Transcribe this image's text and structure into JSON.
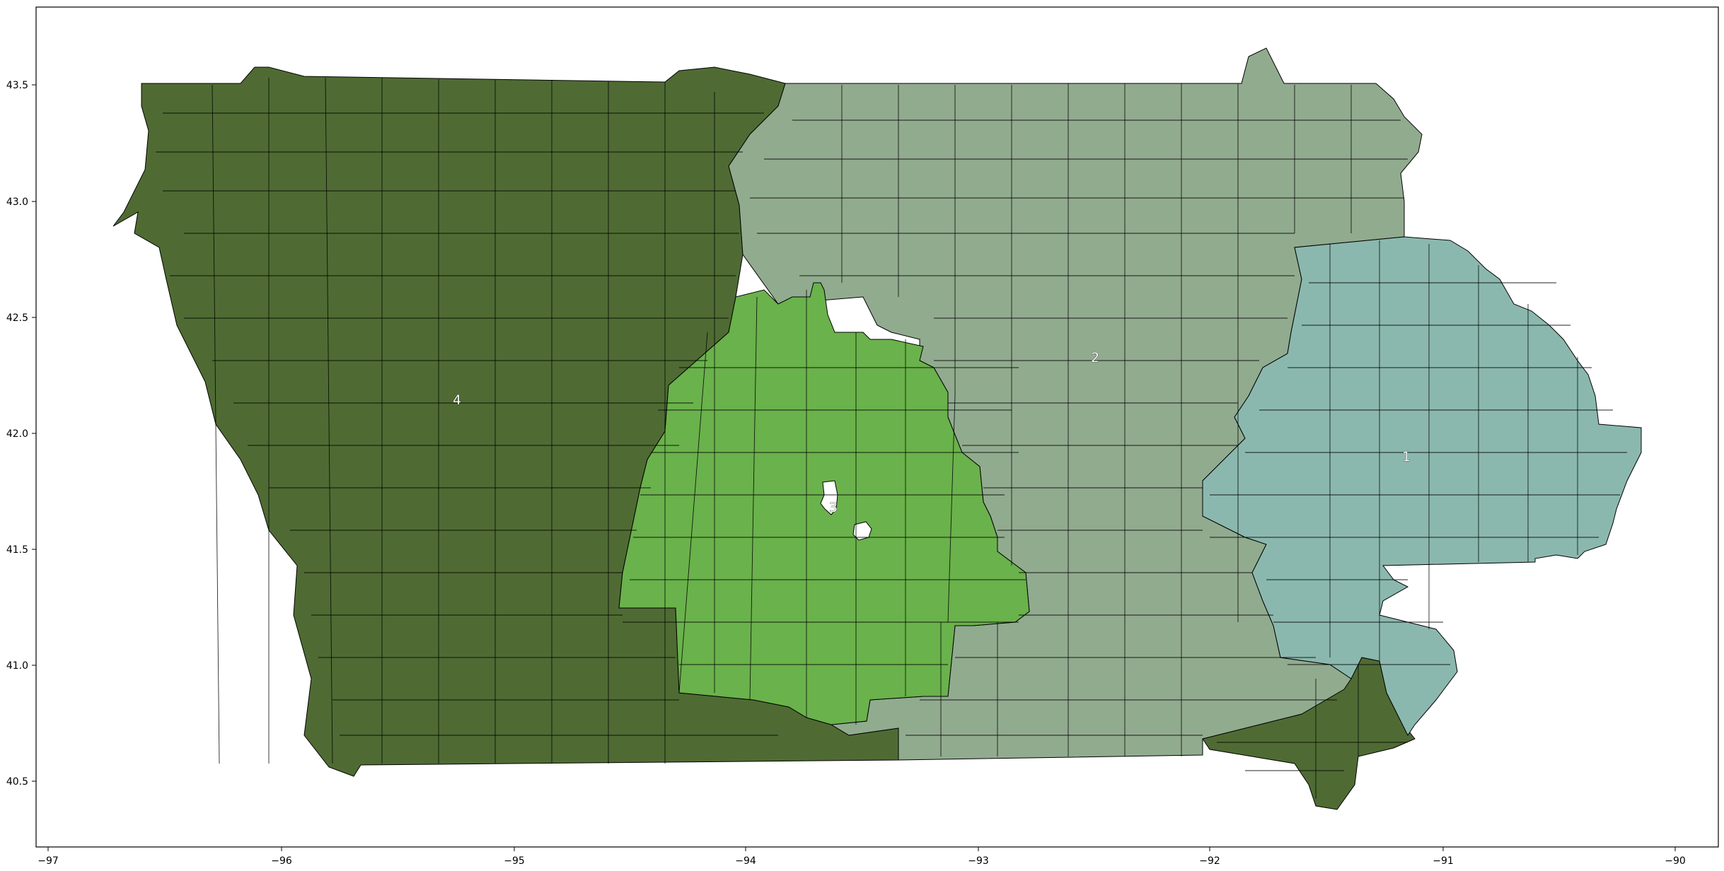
{
  "map": {
    "type": "choropleth",
    "subject": "Iowa congressional districts by precinct",
    "xticks": [
      "−97",
      "−96",
      "−95",
      "−94",
      "−93",
      "−92",
      "−91",
      "−90"
    ],
    "yticks": [
      "40.5",
      "41.0",
      "41.5",
      "42.0",
      "42.5",
      "43.0",
      "43.5"
    ],
    "district_labels": [
      "4",
      "2",
      "1",
      "3"
    ],
    "colors": {
      "district_1": "#8bb8ae",
      "district_2": "#91ab8f",
      "district_3": "#6ab24b",
      "district_4": "#4f6b33",
      "hole": "#ffffff",
      "border": "#000000"
    }
  }
}
